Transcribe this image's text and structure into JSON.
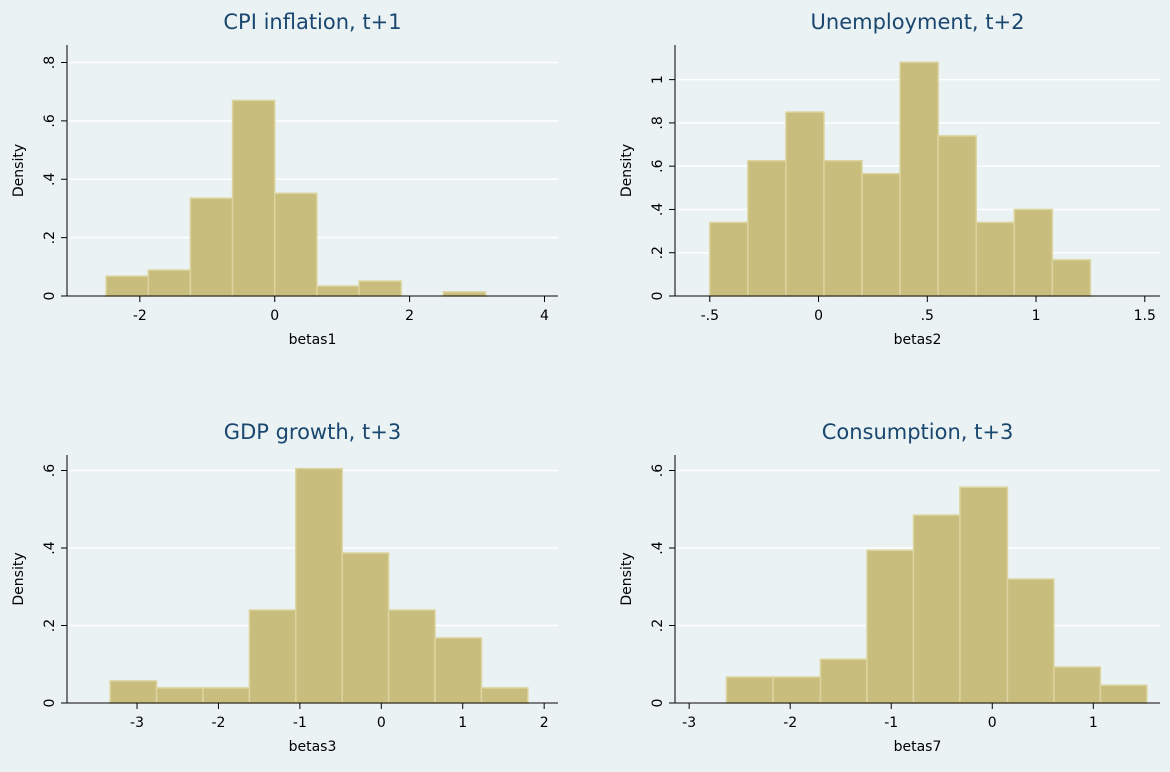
{
  "chart_data": [
    {
      "type": "histogram",
      "title": "CPI inflation, t+1",
      "xlabel": "betas1",
      "ylabel": "Density",
      "bins": [
        -2.5,
        -1.875,
        -1.25,
        -0.625,
        0,
        0.625,
        1.25,
        1.875,
        2.5,
        3.125
      ],
      "values": [
        0.068,
        0.089,
        0.335,
        0.67,
        0.352,
        0.034,
        0.051,
        0,
        0.014
      ],
      "color": "#c9bd7e",
      "xlim": [
        -3.08,
        4.2
      ],
      "ylim": [
        0,
        0.86
      ],
      "xticks": [
        -2,
        0,
        2,
        4
      ],
      "yticks": [
        0,
        {
          "value": 0.2,
          "label": ".2"
        },
        {
          "value": 0.4,
          "label": ".4"
        },
        {
          "value": 0.6,
          "label": ".6"
        },
        {
          "value": 0.8,
          "label": ".8"
        }
      ],
      "grid": true
    },
    {
      "type": "histogram",
      "title": "Unemployment, t+2",
      "xlabel": "betas2",
      "ylabel": "Density",
      "bins": [
        -0.5,
        -0.325,
        -0.15,
        0.025,
        0.2,
        0.375,
        0.55,
        0.725,
        0.9,
        1.075,
        1.25
      ],
      "values": [
        0.34,
        0.625,
        0.85,
        0.625,
        0.565,
        1.08,
        0.74,
        0.34,
        0.4,
        0.167
      ],
      "color": "#c9bd7e",
      "xlim": [
        -0.66,
        1.57
      ],
      "ylim": [
        0,
        1.16
      ],
      "xticks": [
        {
          "value": -0.5,
          "label": "-.5"
        },
        0,
        {
          "value": 0.5,
          "label": ".5"
        },
        1,
        1.5
      ],
      "yticks": [
        0,
        {
          "value": 0.2,
          "label": ".2"
        },
        {
          "value": 0.4,
          "label": ".4"
        },
        {
          "value": 0.6,
          "label": ".6"
        },
        {
          "value": 0.8,
          "label": ".8"
        },
        1
      ],
      "grid": true
    },
    {
      "type": "histogram",
      "title": "GDP growth, t+3",
      "xlabel": "betas3",
      "ylabel": "Density",
      "bins": [
        -3.33,
        -2.76,
        -2.19,
        -1.62,
        -1.05,
        -0.48,
        0.09,
        0.66,
        1.23,
        1.8
      ],
      "values": [
        0.057,
        0.039,
        0.039,
        0.24,
        0.605,
        0.387,
        0.24,
        0.168,
        0.039
      ],
      "color": "#c9bd7e",
      "xlim": [
        -3.86,
        2.17
      ],
      "ylim": [
        0,
        0.64
      ],
      "xticks": [
        -3,
        -2,
        -1,
        0,
        1,
        2
      ],
      "yticks": [
        0,
        {
          "value": 0.2,
          "label": ".2"
        },
        {
          "value": 0.4,
          "label": ".4"
        },
        {
          "value": 0.6,
          "label": ".6"
        }
      ],
      "grid": true
    },
    {
      "type": "histogram",
      "title": "Consumption, t+3",
      "xlabel": "betas7",
      "ylabel": "Density",
      "bins": [
        -2.63,
        -2.17,
        -1.7,
        -1.24,
        -0.78,
        -0.32,
        0.15,
        0.61,
        1.07,
        1.53
      ],
      "values": [
        0.067,
        0.067,
        0.113,
        0.394,
        0.485,
        0.557,
        0.32,
        0.093,
        0.046
      ],
      "color": "#c9bd7e",
      "xlim": [
        -3.14,
        1.66
      ],
      "ylim": [
        0,
        0.64
      ],
      "xticks": [
        -3,
        -2,
        -1,
        0,
        1
      ],
      "yticks": [
        0,
        {
          "value": 0.2,
          "label": ".2"
        },
        {
          "value": 0.4,
          "label": ".4"
        },
        {
          "value": 0.6,
          "label": ".6"
        }
      ],
      "grid": true
    }
  ]
}
